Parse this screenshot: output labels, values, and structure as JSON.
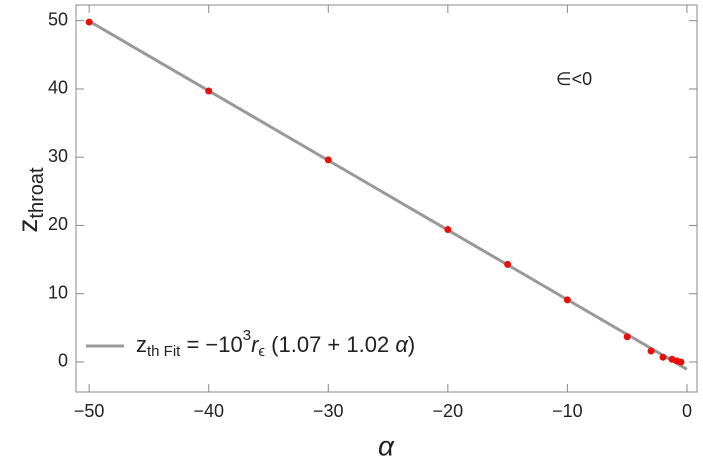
{
  "chart_data": {
    "type": "scatter",
    "xlabel": "α",
    "ylabel": [
      "z",
      "throat"
    ],
    "annotation": "∈<0",
    "xlim": [
      -51.1,
      0.84
    ],
    "ylim": [
      -4.4,
      52.3
    ],
    "xticks": [
      {
        "value": -50,
        "label": "−50"
      },
      {
        "value": -40,
        "label": "−40"
      },
      {
        "value": -30,
        "label": "−30"
      },
      {
        "value": -20,
        "label": "−20"
      },
      {
        "value": -10,
        "label": "−10"
      },
      0
    ],
    "yticks": [
      0,
      10,
      20,
      30,
      40,
      50
    ],
    "series": [
      {
        "type": "scatter",
        "color": "#e8100c",
        "x": [
          -50,
          -40,
          -30,
          -20,
          -15,
          -10,
          -5,
          -3,
          -2,
          -1.25,
          -0.84,
          -0.5
        ],
        "values": [
          49.8,
          39.7,
          29.6,
          19.4,
          14.3,
          9.1,
          3.7,
          1.6,
          0.7,
          0.4,
          0.15,
          0
        ]
      },
      {
        "type": "line",
        "color": "#999999",
        "name": [
          "z",
          "th Fit",
          " = −10",
          "3",
          "r",
          "ϵ",
          " (1.07 + 1.02 ",
          "α",
          ")"
        ],
        "x": [
          -50,
          0
        ],
        "values": [
          49.93,
          -1.07
        ]
      }
    ]
  }
}
